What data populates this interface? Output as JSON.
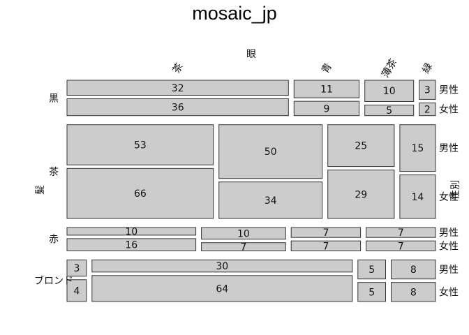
{
  "chart_data": {
    "type": "mosaic",
    "title": "mosaic_jp",
    "row_var_label": "髪",
    "col_var_label": "眼",
    "sub_var_label": "性別",
    "hair": [
      "黒",
      "茶",
      "赤",
      "ブロンド"
    ],
    "eye": [
      "茶",
      "青",
      "薄茶",
      "緑"
    ],
    "sex": [
      "男性",
      "女性"
    ],
    "counts": [
      {
        "hair": "黒",
        "eye": "茶",
        "男性": 32,
        "女性": 36
      },
      {
        "hair": "黒",
        "eye": "青",
        "男性": 11,
        "女性": 9
      },
      {
        "hair": "黒",
        "eye": "薄茶",
        "男性": 10,
        "女性": 5
      },
      {
        "hair": "黒",
        "eye": "緑",
        "男性": 3,
        "女性": 2
      },
      {
        "hair": "茶",
        "eye": "茶",
        "男性": 53,
        "女性": 66
      },
      {
        "hair": "茶",
        "eye": "青",
        "男性": 50,
        "女性": 34
      },
      {
        "hair": "茶",
        "eye": "薄茶",
        "男性": 25,
        "女性": 29
      },
      {
        "hair": "茶",
        "eye": "緑",
        "男性": 15,
        "女性": 14
      },
      {
        "hair": "赤",
        "eye": "茶",
        "男性": 10,
        "女性": 16
      },
      {
        "hair": "赤",
        "eye": "青",
        "男性": 10,
        "女性": 7
      },
      {
        "hair": "赤",
        "eye": "薄茶",
        "男性": 7,
        "女性": 7
      },
      {
        "hair": "赤",
        "eye": "緑",
        "男性": 7,
        "女性": 7
      },
      {
        "hair": "ブロンド",
        "eye": "茶",
        "男性": 3,
        "女性": 4
      },
      {
        "hair": "ブロンド",
        "eye": "青",
        "男性": 30,
        "女性": 64
      },
      {
        "hair": "ブロンド",
        "eye": "薄茶",
        "男性": 5,
        "女性": 5
      },
      {
        "hair": "ブロンド",
        "eye": "緑",
        "男性": 8,
        "女性": 8
      }
    ],
    "fill_color": "#cccccc",
    "border_color": "#333333",
    "grid": false
  }
}
